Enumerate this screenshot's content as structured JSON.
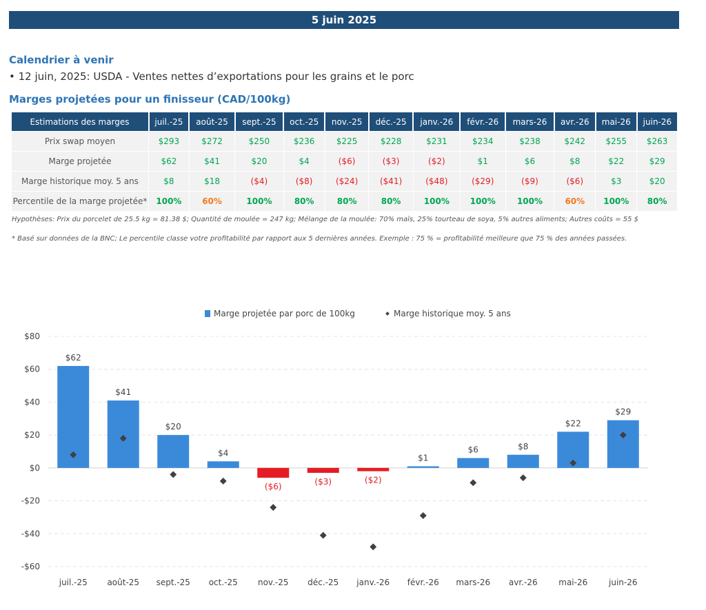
{
  "header": {
    "date": "5 juin 2025"
  },
  "calendar": {
    "title": "Calendrier à venir",
    "item": "• 12 juin, 2025: USDA - Ventes nettes d’exportations pour les grains et le porc"
  },
  "margins_table": {
    "title": "Marges projetées pour un finisseur (CAD/100kg)",
    "corner_header": "Estimations des marges",
    "months": [
      "juil.-25",
      "août-25",
      "sept.-25",
      "oct.-25",
      "nov.-25",
      "déc.-25",
      "janv.-26",
      "févr.-26",
      "mars-26",
      "avr.-26",
      "mai-26",
      "juin-26"
    ],
    "rows": [
      {
        "label": "Prix swap moyen",
        "values": [
          "$293",
          "$272",
          "$250",
          "$236",
          "$225",
          "$228",
          "$231",
          "$234",
          "$238",
          "$242",
          "$255",
          "$263"
        ],
        "tones": [
          "pos",
          "pos",
          "pos",
          "pos",
          "pos",
          "pos",
          "pos",
          "pos",
          "pos",
          "pos",
          "pos",
          "pos"
        ]
      },
      {
        "label": "Marge projetée",
        "values": [
          "$62",
          "$41",
          "$20",
          "$4",
          "($6)",
          "($3)",
          "($2)",
          "$1",
          "$6",
          "$8",
          "$22",
          "$29"
        ],
        "tones": [
          "pos",
          "pos",
          "pos",
          "pos",
          "neg",
          "neg",
          "neg",
          "pos",
          "pos",
          "pos",
          "pos",
          "pos"
        ]
      },
      {
        "label": "Marge historique moy. 5 ans",
        "values": [
          "$8",
          "$18",
          "($4)",
          "($8)",
          "($24)",
          "($41)",
          "($48)",
          "($29)",
          "($9)",
          "($6)",
          "$3",
          "$20"
        ],
        "tones": [
          "pos",
          "pos",
          "neg",
          "neg",
          "neg",
          "neg",
          "neg",
          "neg",
          "neg",
          "neg",
          "pos",
          "pos"
        ]
      },
      {
        "label": "Percentile de la marge projetée*",
        "values": [
          "100%",
          "60%",
          "100%",
          "80%",
          "80%",
          "80%",
          "100%",
          "100%",
          "100%",
          "60%",
          "100%",
          "80%"
        ],
        "tones": [
          "pos",
          "mid",
          "pos",
          "pos",
          "pos",
          "pos",
          "pos",
          "pos",
          "pos",
          "mid",
          "pos",
          "pos"
        ],
        "bold": true
      }
    ]
  },
  "notes": {
    "assumptions": "Hypothèses: Prix du porcelet de 25.5 kg = 81.38 $; Quantité de moulée = 247 kg; Mélange de la moulée: 70% maïs, 25% tourteau de soya, 5% autres aliments; Autres coûts = 55 $",
    "footnote": "* Basé sur données de la BNC; Le percentile classe votre profitabilité par rapport aux 5 dernières années. Exemple : 75 % = profitabilité meilleure que 75 % des années passées."
  },
  "colors": {
    "header_blue": "#1f4e79",
    "title_blue": "#2e75b6",
    "bar_blue": "#3b8ad9",
    "bar_red": "#e51c23",
    "positive": "#00a651",
    "negative": "#e51c23",
    "medium": "#f47920",
    "marker": "#404040"
  },
  "chart_data": {
    "type": "bar",
    "categories": [
      "juil.-25",
      "août-25",
      "sept.-25",
      "oct.-25",
      "nov.-25",
      "déc.-25",
      "janv.-26",
      "févr.-26",
      "mars-26",
      "avr.-26",
      "mai-26",
      "juin-26"
    ],
    "series": [
      {
        "name": "Marge projetée par porc de 100kg",
        "type": "bar",
        "values": [
          62,
          41,
          20,
          4,
          -6,
          -3,
          -2,
          1,
          6,
          8,
          22,
          29
        ],
        "labels": [
          "$62",
          "$41",
          "$20",
          "$4",
          "($6)",
          "($3)",
          "($2)",
          "$1",
          "$6",
          "$8",
          "$22",
          "$29"
        ]
      },
      {
        "name": "Marge historique moy. 5 ans",
        "type": "scatter",
        "marker": "diamond",
        "values": [
          8,
          18,
          -4,
          -8,
          -24,
          -41,
          -48,
          -29,
          -9,
          -6,
          3,
          20
        ]
      }
    ],
    "ylim": [
      -60,
      80
    ],
    "yticks": [
      80,
      60,
      40,
      20,
      0,
      -20,
      -40,
      -60
    ],
    "ytick_labels": [
      "$80",
      "$60",
      "$40",
      "$20",
      "$0",
      "-$20",
      "-$40",
      "-$60"
    ],
    "grid": true,
    "legend": "top-center"
  }
}
